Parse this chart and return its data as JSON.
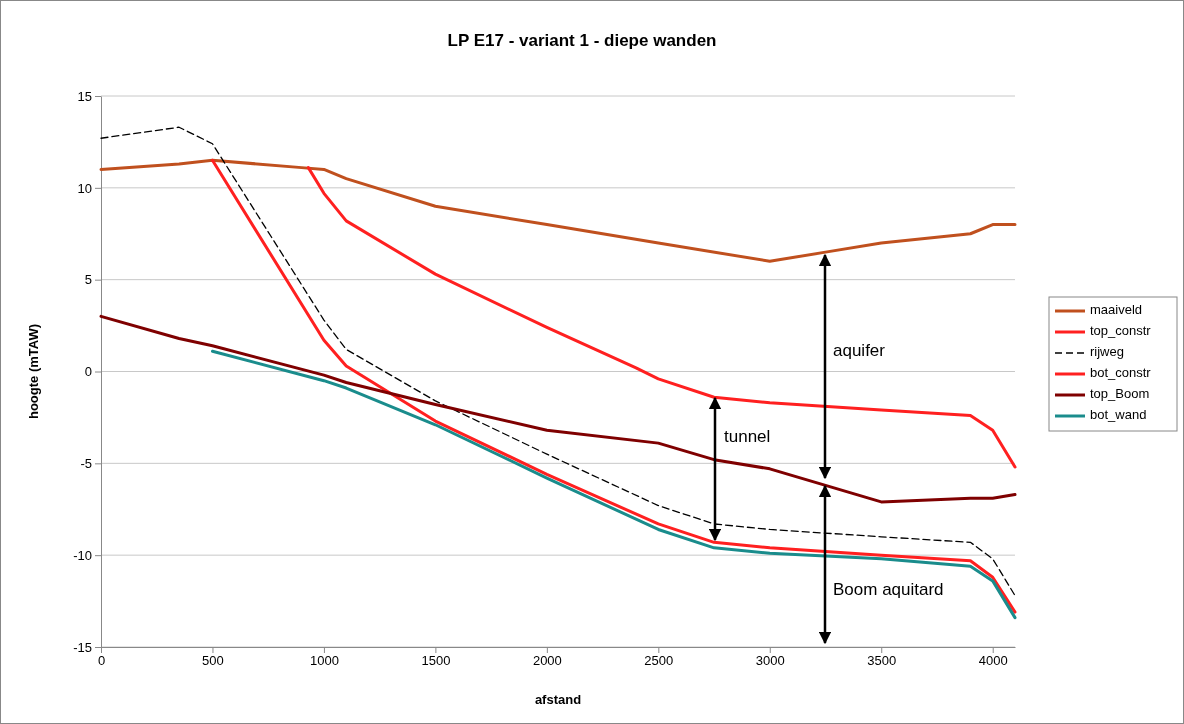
{
  "chart_data": {
    "type": "line",
    "title": "LP E17 - variant 1 - diepe wanden",
    "xlabel": "afstand",
    "ylabel": "hoogte (mTAW)",
    "xlim": [
      0,
      4100
    ],
    "xticks": [
      0,
      500,
      1000,
      1500,
      2000,
      2500,
      3000,
      3500,
      4000
    ],
    "ylim": [
      -15,
      15
    ],
    "yticks": [
      -15,
      -10,
      -5,
      0,
      5,
      10,
      15
    ],
    "grid": "y",
    "legend": "right",
    "marker": "none",
    "series": [
      {
        "name": "maaiveld",
        "color": "#c0501e",
        "x": [
          0,
          350,
          500,
          900,
          1000,
          1100,
          1500,
          2000,
          2500,
          3000,
          3250,
          3500,
          3900,
          4000,
          4100
        ],
        "values": [
          11,
          11.3,
          11.5,
          11.1,
          11,
          10.5,
          9,
          8,
          7,
          6,
          6.5,
          7,
          7.5,
          8,
          8
        ]
      },
      {
        "name": "top_constr",
        "color": "#ff2020",
        "x": [
          930,
          1000,
          1100,
          1500,
          2000,
          2400,
          2500,
          2750,
          3000,
          3500,
          3900,
          4000,
          4100
        ],
        "values": [
          11.1,
          9.7,
          8.2,
          5.3,
          2.4,
          0.2,
          -0.4,
          -1.4,
          -1.7,
          -2.1,
          -2.4,
          -3.2,
          -5.2
        ]
      },
      {
        "name": "rijweg",
        "color": "#000000",
        "line_style": "dashed",
        "x": [
          0,
          350,
          500,
          1000,
          1100,
          1500,
          2000,
          2500,
          2750,
          3000,
          3500,
          3900,
          4000,
          4100
        ],
        "values": [
          12.7,
          13.3,
          12.4,
          2.8,
          1.2,
          -1.6,
          -4.5,
          -7.3,
          -8.3,
          -8.6,
          -9,
          -9.3,
          -10.2,
          -12.2
        ]
      },
      {
        "name": "bot_constr",
        "color": "#ff2020",
        "x": [
          500,
          1000,
          1100,
          1500,
          2000,
          2500,
          2750,
          3000,
          3500,
          3900,
          4000,
          4100
        ],
        "values": [
          11.5,
          1.7,
          0.3,
          -2.7,
          -5.6,
          -8.3,
          -9.3,
          -9.6,
          -10,
          -10.3,
          -11.2,
          -13.1
        ]
      },
      {
        "name": "top_Boom",
        "color": "#7f0000",
        "x": [
          0,
          350,
          500,
          1000,
          1100,
          1500,
          2000,
          2500,
          2750,
          3000,
          3250,
          3500,
          3900,
          4000,
          4100
        ],
        "values": [
          3,
          1.8,
          1.4,
          -0.2,
          -0.6,
          -1.8,
          -3.2,
          -3.9,
          -4.8,
          -5.3,
          -6.2,
          -7.1,
          -6.9,
          -6.9,
          -6.7
        ]
      },
      {
        "name": "bot_wand",
        "color": "#1a8c8c",
        "x": [
          500,
          1000,
          1100,
          1500,
          2000,
          2500,
          2750,
          3000,
          3500,
          3900,
          4000,
          4100
        ],
        "values": [
          1.1,
          -0.5,
          -0.9,
          -2.9,
          -5.8,
          -8.6,
          -9.6,
          -9.9,
          -10.2,
          -10.6,
          -11.4,
          -13.4
        ]
      }
    ],
    "annotations": [
      "tunnel",
      "aquifer",
      "Boom aquitard"
    ]
  }
}
